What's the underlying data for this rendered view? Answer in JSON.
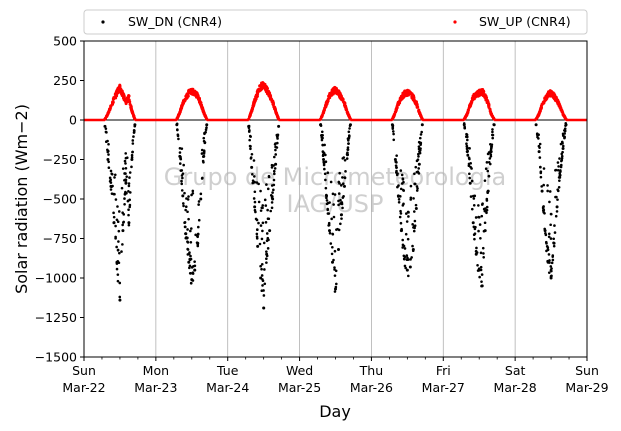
{
  "chart_data": {
    "type": "scatter",
    "xlabel": "Day",
    "ylabel": "Solar radiation ($Wm−2$)",
    "ylabel_display": "Solar radiation (Wm−2)",
    "xlim": [
      "2020-03-22T00:00",
      "2020-03-29T00:00"
    ],
    "ylim": [
      -1500,
      500
    ],
    "yticks": [
      -1500,
      -1250,
      -1000,
      -750,
      -500,
      -250,
      0,
      250,
      500
    ],
    "xticks": [
      {
        "date": "2020-03-22",
        "day": "Sun",
        "label": "Mar-22"
      },
      {
        "date": "2020-03-23",
        "day": "Mon",
        "label": "Mar-23"
      },
      {
        "date": "2020-03-24",
        "day": "Tue",
        "label": "Mar-24"
      },
      {
        "date": "2020-03-25",
        "day": "Wed",
        "label": "Mar-25"
      },
      {
        "date": "2020-03-26",
        "day": "Thu",
        "label": "Mar-26"
      },
      {
        "date": "2020-03-27",
        "day": "Fri",
        "label": "Mar-27"
      },
      {
        "date": "2020-03-28",
        "day": "Sat",
        "label": "Mar-28"
      },
      {
        "date": "2020-03-29",
        "day": "Sun",
        "label": "Mar-29"
      }
    ],
    "vertical_grid": true,
    "zero_line": true,
    "legend_placement": "top, above plot, two columns",
    "watermark": [
      "Grupo de Micrometeorologia",
      "IAG/USP"
    ],
    "series": [
      {
        "name": "SW_DN (CNR4)",
        "color": "#000000",
        "marker": "dot",
        "days": [
          {
            "date": "2020-03-22",
            "x": [
              "07:00",
              "08:00",
              "09:00",
              "10:00",
              "11:00",
              "12:00",
              "13:00",
              "14:00",
              "15:00",
              "16:00",
              "17:00"
            ],
            "y": [
              -40,
              -250,
              -420,
              -650,
              -900,
              -1140,
              -700,
              -400,
              -650,
              -250,
              -30
            ]
          },
          {
            "date": "2020-03-23",
            "x": [
              "07:00",
              "08:00",
              "09:00",
              "10:00",
              "11:00",
              "12:00",
              "13:00",
              "14:00",
              "15:00",
              "16:00",
              "17:00"
            ],
            "y": [
              -30,
              -230,
              -480,
              -720,
              -900,
              -1010,
              -950,
              -780,
              -500,
              -230,
              -30
            ]
          },
          {
            "date": "2020-03-24",
            "x": [
              "07:00",
              "08:00",
              "09:00",
              "10:00",
              "11:00",
              "12:00",
              "13:00",
              "14:00",
              "15:00",
              "16:00",
              "17:00"
            ],
            "y": [
              -40,
              -300,
              -550,
              -800,
              -1000,
              -1190,
              -850,
              -700,
              -500,
              -280,
              -40
            ]
          },
          {
            "date": "2020-03-25",
            "x": [
              "07:00",
              "08:00",
              "09:00",
              "10:00",
              "11:00",
              "12:00",
              "13:00",
              "14:00",
              "15:00",
              "16:00",
              "17:00"
            ],
            "y": [
              -30,
              -250,
              -480,
              -700,
              -900,
              -1070,
              -820,
              -600,
              -420,
              -220,
              -30
            ]
          },
          {
            "date": "2020-03-26",
            "x": [
              "07:00",
              "08:00",
              "09:00",
              "10:00",
              "11:00",
              "12:00",
              "13:00",
              "14:00",
              "15:00",
              "16:00",
              "17:00"
            ],
            "y": [
              -30,
              -250,
              -480,
              -700,
              -880,
              -950,
              -930,
              -820,
              -560,
              -280,
              -30
            ]
          },
          {
            "date": "2020-03-27",
            "x": [
              "07:00",
              "08:00",
              "09:00",
              "10:00",
              "11:00",
              "12:00",
              "13:00",
              "14:00",
              "15:00",
              "16:00",
              "17:00"
            ],
            "y": [
              -30,
              -200,
              -400,
              -650,
              -850,
              -950,
              -1050,
              -700,
              -450,
              -200,
              -30
            ]
          },
          {
            "date": "2020-03-28",
            "x": [
              "07:00",
              "08:00",
              "09:00",
              "10:00",
              "11:00",
              "12:00",
              "13:00",
              "14:00",
              "15:00",
              "16:00",
              "17:00"
            ],
            "y": [
              -30,
              -200,
              -450,
              -700,
              -900,
              -1000,
              -780,
              -550,
              -350,
              -180,
              -30
            ]
          }
        ]
      },
      {
        "name": "SW_UP (CNR4)",
        "color": "#ff0000",
        "marker": "dot",
        "days": [
          {
            "date": "2020-03-22",
            "x": [
              "07:00",
              "08:00",
              "09:00",
              "10:00",
              "11:00",
              "12:00",
              "13:00",
              "14:00",
              "15:00",
              "16:00",
              "17:00"
            ],
            "y": [
              5,
              40,
              90,
              140,
              180,
              215,
              170,
              120,
              150,
              60,
              5
            ]
          },
          {
            "date": "2020-03-23",
            "x": [
              "07:00",
              "08:00",
              "09:00",
              "10:00",
              "11:00",
              "12:00",
              "13:00",
              "14:00",
              "15:00",
              "16:00",
              "17:00"
            ],
            "y": [
              5,
              50,
              110,
              150,
              180,
              190,
              180,
              160,
              110,
              50,
              5
            ]
          },
          {
            "date": "2020-03-24",
            "x": [
              "07:00",
              "08:00",
              "09:00",
              "10:00",
              "11:00",
              "12:00",
              "13:00",
              "14:00",
              "15:00",
              "16:00",
              "17:00"
            ],
            "y": [
              5,
              60,
              130,
              180,
              220,
              230,
              200,
              170,
              120,
              60,
              5
            ]
          },
          {
            "date": "2020-03-25",
            "x": [
              "07:00",
              "08:00",
              "09:00",
              "10:00",
              "11:00",
              "12:00",
              "13:00",
              "14:00",
              "15:00",
              "16:00",
              "17:00"
            ],
            "y": [
              5,
              50,
              110,
              160,
              190,
              200,
              180,
              150,
              110,
              50,
              5
            ]
          },
          {
            "date": "2020-03-26",
            "x": [
              "07:00",
              "08:00",
              "09:00",
              "10:00",
              "11:00",
              "12:00",
              "13:00",
              "14:00",
              "15:00",
              "16:00",
              "17:00"
            ],
            "y": [
              5,
              50,
              110,
              150,
              175,
              180,
              175,
              150,
              110,
              50,
              5
            ]
          },
          {
            "date": "2020-03-27",
            "x": [
              "07:00",
              "08:00",
              "09:00",
              "10:00",
              "11:00",
              "12:00",
              "13:00",
              "14:00",
              "15:00",
              "16:00",
              "17:00"
            ],
            "y": [
              5,
              40,
              100,
              150,
              170,
              180,
              190,
              160,
              110,
              40,
              5
            ]
          },
          {
            "date": "2020-03-28",
            "x": [
              "07:00",
              "08:00",
              "09:00",
              "10:00",
              "11:00",
              "12:00",
              "13:00",
              "14:00",
              "15:00",
              "16:00",
              "17:00"
            ],
            "y": [
              5,
              40,
              100,
              140,
              170,
              180,
              160,
              130,
              90,
              40,
              5
            ]
          }
        ]
      }
    ]
  }
}
